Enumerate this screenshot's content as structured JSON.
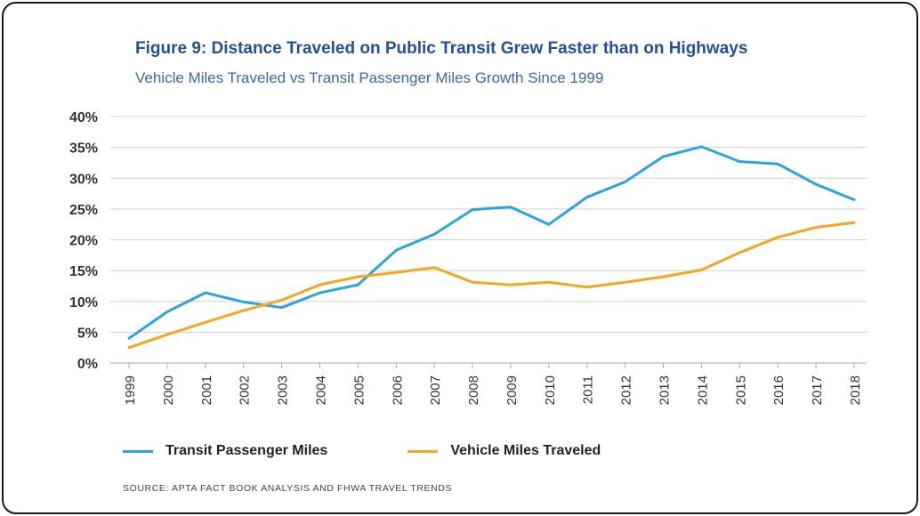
{
  "chart_data": {
    "type": "line",
    "title": "Figure 9:  Distance Traveled on Public Transit Grew Faster than on Highways",
    "subtitle": "Vehicle Miles Traveled vs Transit Passenger Miles Growth Since 1999",
    "x": [
      "1999",
      "2000",
      "2001",
      "2002",
      "2003",
      "2004",
      "2005",
      "2006",
      "2007",
      "2008",
      "2009",
      "2010",
      "2011",
      "2012",
      "2013",
      "2014",
      "2015",
      "2016",
      "2017",
      "2018"
    ],
    "series": [
      {
        "name": "Transit Passenger Miles",
        "color": "#2aa6dd",
        "values": [
          4.0,
          8.3,
          11.4,
          9.9,
          9.0,
          11.4,
          12.7,
          18.3,
          20.9,
          24.9,
          25.3,
          22.5,
          26.9,
          29.4,
          33.5,
          35.1,
          32.7,
          32.3,
          29.0,
          26.5
        ]
      },
      {
        "name": "Vehicle Miles Traveled",
        "color": "#f5a623",
        "values": [
          2.5,
          4.6,
          6.6,
          8.5,
          10.2,
          12.7,
          14.0,
          14.7,
          15.5,
          13.1,
          12.7,
          13.1,
          12.3,
          13.1,
          14.0,
          15.1,
          17.9,
          20.4,
          22.0,
          22.8
        ]
      }
    ],
    "ylim": [
      0,
      40
    ],
    "yticks": [
      "0%",
      "5%",
      "10%",
      "15%",
      "20%",
      "25%",
      "30%",
      "35%",
      "40%"
    ],
    "ytick_values": [
      0,
      5,
      10,
      15,
      20,
      25,
      30,
      35,
      40
    ],
    "grid": true,
    "legend_position": "bottom",
    "source": "SOURCE: APTA FACT BOOK ANALYSIS AND FHWA TRAVEL TRENDS"
  }
}
